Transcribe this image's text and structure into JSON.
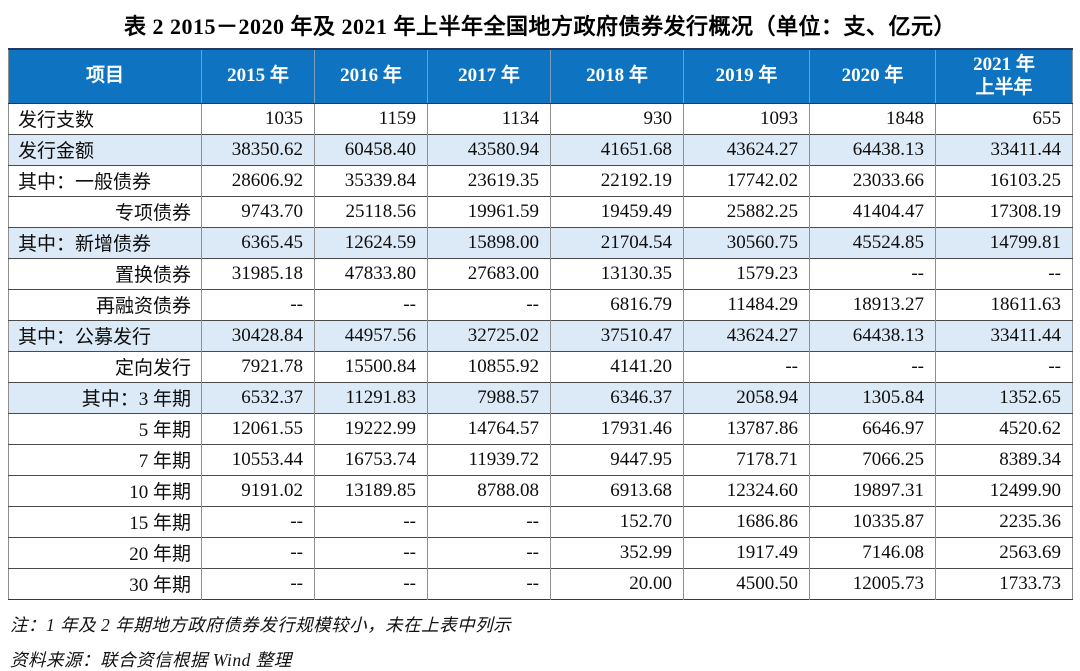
{
  "title": "表 2  2015－2020 年及 2021 年上半年全国地方政府债券发行概况（单位：支、亿元）",
  "table": {
    "columns": [
      "项目",
      "2015 年",
      "2016 年",
      "2017 年",
      "2018 年",
      "2019 年",
      "2020 年",
      "2021 年\n上半年"
    ],
    "rows": [
      {
        "label": "发行支数",
        "align": "left",
        "highlight": false,
        "values": [
          "1035",
          "1159",
          "1134",
          "930",
          "1093",
          "1848",
          "655"
        ]
      },
      {
        "label": "发行金额",
        "align": "left",
        "highlight": true,
        "values": [
          "38350.62",
          "60458.40",
          "43580.94",
          "41651.68",
          "43624.27",
          "64438.13",
          "33411.44"
        ]
      },
      {
        "label": "其中：一般债券",
        "align": "left",
        "highlight": false,
        "values": [
          "28606.92",
          "35339.84",
          "23619.35",
          "22192.19",
          "17742.02",
          "23033.66",
          "16103.25"
        ]
      },
      {
        "label": "专项债券",
        "align": "right",
        "highlight": false,
        "values": [
          "9743.70",
          "25118.56",
          "19961.59",
          "19459.49",
          "25882.25",
          "41404.47",
          "17308.19"
        ]
      },
      {
        "label": "其中：新增债券",
        "align": "left",
        "highlight": true,
        "values": [
          "6365.45",
          "12624.59",
          "15898.00",
          "21704.54",
          "30560.75",
          "45524.85",
          "14799.81"
        ]
      },
      {
        "label": "置换债券",
        "align": "right",
        "highlight": false,
        "values": [
          "31985.18",
          "47833.80",
          "27683.00",
          "13130.35",
          "1579.23",
          "--",
          "--"
        ]
      },
      {
        "label": "再融资债券",
        "align": "right",
        "highlight": false,
        "values": [
          "--",
          "--",
          "--",
          "6816.79",
          "11484.29",
          "18913.27",
          "18611.63"
        ]
      },
      {
        "label": "其中：公募发行",
        "align": "left",
        "highlight": true,
        "values": [
          "30428.84",
          "44957.56",
          "32725.02",
          "37510.47",
          "43624.27",
          "64438.13",
          "33411.44"
        ]
      },
      {
        "label": "定向发行",
        "align": "right",
        "highlight": false,
        "values": [
          "7921.78",
          "15500.84",
          "10855.92",
          "4141.20",
          "--",
          "--",
          "--"
        ]
      },
      {
        "label": "其中：3 年期",
        "align": "right",
        "highlight": true,
        "values": [
          "6532.37",
          "11291.83",
          "7988.57",
          "6346.37",
          "2058.94",
          "1305.84",
          "1352.65"
        ]
      },
      {
        "label": "5 年期",
        "align": "right",
        "highlight": false,
        "values": [
          "12061.55",
          "19222.99",
          "14764.57",
          "17931.46",
          "13787.86",
          "6646.97",
          "4520.62"
        ]
      },
      {
        "label": "7 年期",
        "align": "right",
        "highlight": false,
        "values": [
          "10553.44",
          "16753.74",
          "11939.72",
          "9447.95",
          "7178.71",
          "7066.25",
          "8389.34"
        ]
      },
      {
        "label": "10 年期",
        "align": "right",
        "highlight": false,
        "values": [
          "9191.02",
          "13189.85",
          "8788.08",
          "6913.68",
          "12324.60",
          "19897.31",
          "12499.90"
        ]
      },
      {
        "label": "15 年期",
        "align": "right",
        "highlight": false,
        "values": [
          "--",
          "--",
          "--",
          "152.70",
          "1686.86",
          "10335.87",
          "2235.36"
        ]
      },
      {
        "label": "20 年期",
        "align": "right",
        "highlight": false,
        "values": [
          "--",
          "--",
          "--",
          "352.99",
          "1917.49",
          "7146.08",
          "2563.69"
        ]
      },
      {
        "label": "30 年期",
        "align": "right",
        "highlight": false,
        "values": [
          "--",
          "--",
          "--",
          "20.00",
          "4500.50",
          "12005.73",
          "1733.73"
        ]
      }
    ]
  },
  "notes": [
    "注：1 年及 2 年期地方政府债券发行规模较小，未在上表中列示",
    "资料来源：联合资信根据 Wind 整理"
  ],
  "colors": {
    "header_bg": "#0e74c2",
    "header_text": "#ffffff",
    "stripe_bg": "#dce9f6",
    "title_text": "#000000",
    "border_dark": "#4a4a4a",
    "border_light": "#8f8f8f",
    "header_top_border": "#1f3864"
  }
}
